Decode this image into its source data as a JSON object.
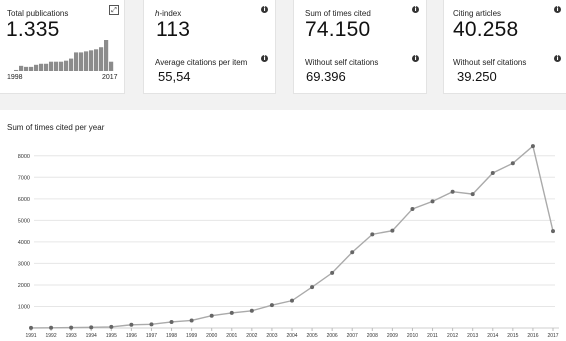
{
  "metrics": {
    "total_publications": {
      "label": "Total publications",
      "value": "1.335",
      "year_start": "1998",
      "year_end": "2017",
      "spark_values": [
        1,
        5,
        4,
        4,
        6,
        7,
        7,
        9,
        9,
        9,
        10,
        12,
        18,
        18,
        19,
        20,
        21,
        23,
        30,
        9
      ]
    },
    "h_index": {
      "label_prefix": "h",
      "label": "-index",
      "value": "113",
      "avg_label": "Average citations per item",
      "avg_value": "55,54"
    },
    "times_cited": {
      "label": "Sum of times cited",
      "value": "74.150",
      "without_label": "Without self citations",
      "without_value": "69.396"
    },
    "citing_articles": {
      "label": "Citing articles",
      "value": "40.258",
      "without_label": "Without self citations",
      "without_value": "39.250"
    }
  },
  "chart_data": {
    "type": "line",
    "title": "Sum of times cited per year",
    "xlabel": "",
    "ylabel": "",
    "ylim": [
      0,
      8500
    ],
    "yticks": [
      1000,
      2000,
      3000,
      4000,
      5000,
      6000,
      7000,
      8000
    ],
    "grid": "horizontal",
    "x": [
      "1991",
      "1992",
      "1993",
      "1994",
      "1995",
      "1996",
      "1997",
      "1998",
      "1999",
      "2000",
      "2001",
      "2002",
      "2003",
      "2004",
      "2005",
      "2006",
      "2007",
      "2008",
      "2009",
      "2010",
      "2011",
      "2012",
      "2013",
      "2014",
      "2015",
      "2016",
      "2017"
    ],
    "series": [
      {
        "values": [
          5,
          10,
          20,
          30,
          50,
          150,
          170,
          280,
          350,
          570,
          700,
          800,
          1060,
          1270,
          1900,
          2560,
          3520,
          4350,
          4520,
          5530,
          5880,
          6330,
          6220,
          7200,
          7650,
          8450,
          4500
        ],
        "color": "#aaaaaa"
      }
    ]
  },
  "colors": {
    "spark_bar": "#8c8c8c",
    "line": "#aaaaaa",
    "point": "#666666",
    "grid": "#e6e6e6"
  },
  "icons": {
    "info": "info-icon",
    "expand": "expand-icon"
  }
}
